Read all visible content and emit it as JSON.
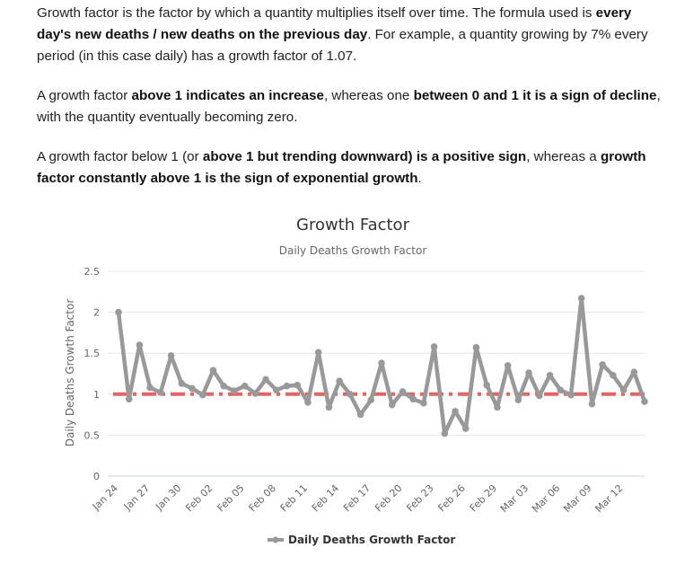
{
  "paragraphs": [
    [
      {
        "t": "Growth factor is the factor by which a quantity multiplies itself over time. The formula used is ",
        "b": false
      },
      {
        "t": "every day's new deaths / new deaths on the previous day",
        "b": true
      },
      {
        "t": ". For example, a quantity growing by 7% every period (in this case daily) has a growth factor of 1.07.",
        "b": false
      }
    ],
    [
      {
        "t": "A growth factor ",
        "b": false
      },
      {
        "t": "above 1 indicates an increase",
        "b": true
      },
      {
        "t": ", whereas one ",
        "b": false
      },
      {
        "t": "between 0 and 1 it is a sign of decline",
        "b": true
      },
      {
        "t": ", with the quantity eventually becoming zero.",
        "b": false
      }
    ],
    [
      {
        "t": "A growth factor below 1 (or ",
        "b": false
      },
      {
        "t": "above 1 but trending downward) is a positive sign",
        "b": true
      },
      {
        "t": ", whereas a ",
        "b": false
      },
      {
        "t": "growth factor constantly above 1 is the sign of exponential growth",
        "b": true
      },
      {
        "t": ".",
        "b": false
      }
    ]
  ],
  "chart_data": {
    "type": "line",
    "title": "Growth Factor",
    "subtitle": "Daily Deaths Growth Factor",
    "ylabel": "Daily Deaths Growth Factor",
    "xlabel": "",
    "ylim": [
      0,
      2.5
    ],
    "yticks": [
      "0",
      "0.5",
      "1",
      "1.5",
      "2",
      "2.5"
    ],
    "x_tick_labels": [
      "Jan 24",
      "Jan 27",
      "Jan 30",
      "Feb 02",
      "Feb 05",
      "Feb 08",
      "Feb 11",
      "Feb 14",
      "Feb 17",
      "Feb 20",
      "Feb 23",
      "Feb 26",
      "Feb 29",
      "Mar 03",
      "Mar 06",
      "Mar 09",
      "Mar 12"
    ],
    "reference_line": 1,
    "legend": "bottom-center",
    "series": [
      {
        "name": "Daily Deaths Growth Factor",
        "color": "#999999",
        "values": [
          2.0,
          0.94,
          1.6,
          1.08,
          1.02,
          1.47,
          1.13,
          1.07,
          0.99,
          1.29,
          1.1,
          1.04,
          1.1,
          1.01,
          1.18,
          1.05,
          1.1,
          1.11,
          0.9,
          1.51,
          0.84,
          1.16,
          1.0,
          0.75,
          0.93,
          1.38,
          0.87,
          1.03,
          0.94,
          0.89,
          1.58,
          0.52,
          0.79,
          0.58,
          1.57,
          1.11,
          0.84,
          1.35,
          0.93,
          1.26,
          0.98,
          1.23,
          1.05,
          0.99,
          2.17,
          0.88,
          1.36,
          1.23,
          1.05,
          1.27,
          0.91
        ]
      }
    ],
    "colors": {
      "reference": "#e06666",
      "grid": "#e6e6e6",
      "axis": "#ccd6eb",
      "text": "#333333",
      "tick": "#666666"
    }
  }
}
